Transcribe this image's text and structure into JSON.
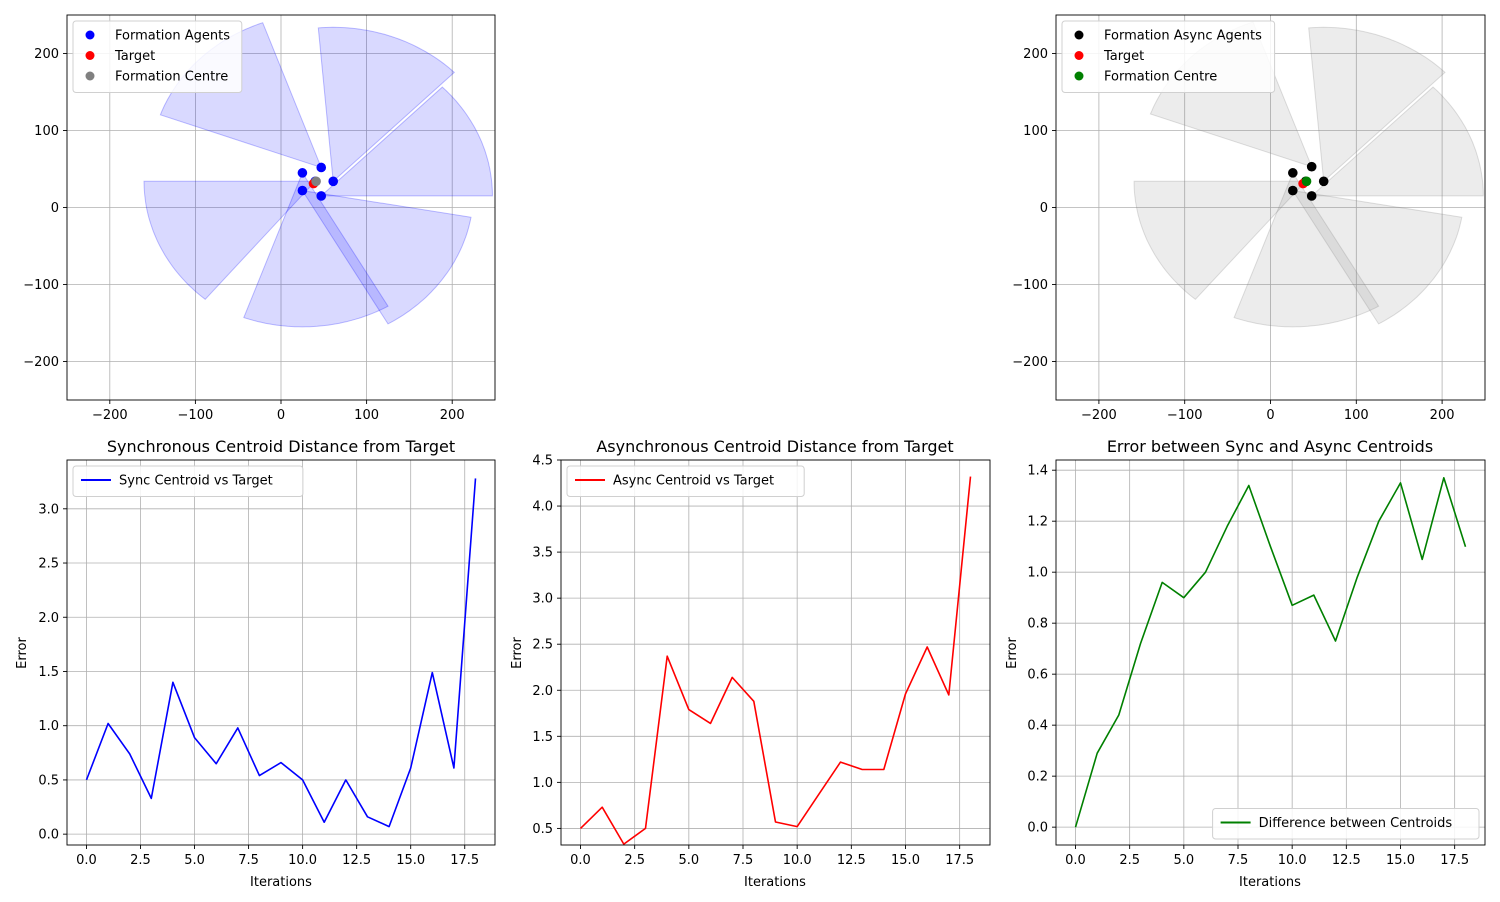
{
  "chart_data": [
    {
      "id": "sync_formation",
      "type": "scatter",
      "xlim": [
        -250,
        250
      ],
      "ylim": [
        -250,
        250
      ],
      "xticks": [
        -200,
        -100,
        0,
        100,
        200
      ],
      "yticks": [
        -200,
        -100,
        0,
        100,
        200
      ],
      "xtick_labels": [
        "−200",
        "−100",
        "0",
        "100",
        "200"
      ],
      "ytick_labels": [
        "−200",
        "−100",
        "0",
        "100",
        "200"
      ],
      "grid": true,
      "legend_position": "top-left",
      "fan_color": "#0000ff",
      "legend": [
        {
          "label": "Formation Agents",
          "color": "#0000ff"
        },
        {
          "label": "Target",
          "color": "#ff0000"
        },
        {
          "label": "Formation Centre",
          "color": "#808080"
        }
      ],
      "agents": [
        [
          47,
          52
        ],
        [
          61,
          34
        ],
        [
          47,
          15
        ],
        [
          25,
          22
        ],
        [
          25,
          45
        ],
        [
          40,
          34
        ]
      ],
      "target": [
        38,
        31
      ],
      "centre": [
        41,
        34
      ],
      "sectors": [
        {
          "cx": 47,
          "cy": 52,
          "r": 200,
          "a1": 110,
          "a2": 160
        },
        {
          "cx": 61,
          "cy": 34,
          "r": 200,
          "a1": 45,
          "a2": 95
        },
        {
          "cx": 47,
          "cy": 15,
          "r": 200,
          "a1": 0,
          "a2": 45
        },
        {
          "cx": 25,
          "cy": 22,
          "r": 200,
          "a1": 300,
          "a2": 350
        },
        {
          "cx": 25,
          "cy": 45,
          "r": 200,
          "a1": 250,
          "a2": 300
        },
        {
          "cx": 40,
          "cy": 34,
          "r": 200,
          "a1": 180,
          "a2": 230
        }
      ]
    },
    {
      "id": "async_formation",
      "type": "scatter",
      "xlim": [
        -250,
        250
      ],
      "ylim": [
        -250,
        250
      ],
      "xticks": [
        -200,
        -100,
        0,
        100,
        200
      ],
      "yticks": [
        -200,
        -100,
        0,
        100,
        200
      ],
      "xtick_labels": [
        "−200",
        "−100",
        "0",
        "100",
        "200"
      ],
      "ytick_labels": [
        "−200",
        "−100",
        "0",
        "100",
        "200"
      ],
      "grid": true,
      "legend_position": "top-left",
      "fan_color": "#808080",
      "legend": [
        {
          "label": "Formation Async Agents",
          "color": "#000000"
        },
        {
          "label": "Target",
          "color": "#ff0000"
        },
        {
          "label": "Formation Centre",
          "color": "#008000"
        }
      ],
      "agents": [
        [
          48,
          53
        ],
        [
          62,
          34
        ],
        [
          48,
          15
        ],
        [
          26,
          22
        ],
        [
          26,
          45
        ],
        [
          41,
          34
        ]
      ],
      "target": [
        38,
        31
      ],
      "centre": [
        42,
        34
      ],
      "sectors": [
        {
          "cx": 48,
          "cy": 53,
          "r": 200,
          "a1": 110,
          "a2": 160
        },
        {
          "cx": 62,
          "cy": 34,
          "r": 200,
          "a1": 45,
          "a2": 95
        },
        {
          "cx": 48,
          "cy": 15,
          "r": 200,
          "a1": 0,
          "a2": 45
        },
        {
          "cx": 26,
          "cy": 22,
          "r": 200,
          "a1": 300,
          "a2": 350
        },
        {
          "cx": 26,
          "cy": 45,
          "r": 200,
          "a1": 250,
          "a2": 300
        },
        {
          "cx": 41,
          "cy": 34,
          "r": 200,
          "a1": 180,
          "a2": 230
        }
      ]
    },
    {
      "id": "sync_error",
      "type": "line",
      "title": "Synchronous Centroid Distance from Target",
      "xlabel": "Iterations",
      "ylabel": "Error",
      "xlim": [
        -0.9,
        18.9
      ],
      "ylim": [
        -0.1,
        3.45
      ],
      "xticks": [
        0,
        2.5,
        5,
        7.5,
        10,
        12.5,
        15,
        17.5
      ],
      "xtick_labels": [
        "0.0",
        "2.5",
        "5.0",
        "7.5",
        "10.0",
        "12.5",
        "15.0",
        "17.5"
      ],
      "yticks": [
        0,
        0.5,
        1,
        1.5,
        2,
        2.5,
        3
      ],
      "ytick_labels": [
        "0.0",
        "0.5",
        "1.0",
        "1.5",
        "2.0",
        "2.5",
        "3.0"
      ],
      "grid": true,
      "legend_position": "top-left",
      "series": [
        {
          "name": "Sync Centroid vs Target",
          "color": "#0000ff",
          "x": [
            0,
            1,
            2,
            3,
            4,
            5,
            6,
            7,
            8,
            9,
            10,
            11,
            12,
            13,
            14,
            15,
            16,
            17,
            18
          ],
          "values": [
            0.5,
            1.02,
            0.74,
            0.33,
            1.4,
            0.89,
            0.65,
            0.98,
            0.54,
            0.66,
            0.5,
            0.11,
            0.5,
            0.16,
            0.07,
            0.61,
            1.49,
            0.61,
            3.28
          ]
        }
      ]
    },
    {
      "id": "async_error",
      "type": "line",
      "title": "Asynchronous Centroid Distance from Target",
      "xlabel": "Iterations",
      "ylabel": "Error",
      "xlim": [
        -0.9,
        18.9
      ],
      "ylim": [
        0.32,
        4.5
      ],
      "xticks": [
        0,
        2.5,
        5,
        7.5,
        10,
        12.5,
        15,
        17.5
      ],
      "xtick_labels": [
        "0.0",
        "2.5",
        "5.0",
        "7.5",
        "10.0",
        "12.5",
        "15.0",
        "17.5"
      ],
      "yticks": [
        0.5,
        1,
        1.5,
        2,
        2.5,
        3,
        3.5,
        4,
        4.5
      ],
      "ytick_labels": [
        "0.5",
        "1.0",
        "1.5",
        "2.0",
        "2.5",
        "3.0",
        "3.5",
        "4.0",
        "4.5"
      ],
      "grid": true,
      "legend_position": "top-left",
      "series": [
        {
          "name": "Async Centroid vs Target",
          "color": "#ff0000",
          "x": [
            0,
            1,
            2,
            3,
            4,
            5,
            6,
            7,
            8,
            9,
            10,
            11,
            12,
            13,
            14,
            15,
            16,
            17,
            18
          ],
          "values": [
            0.5,
            0.73,
            0.33,
            0.5,
            2.37,
            1.79,
            1.64,
            2.14,
            1.88,
            0.57,
            0.52,
            0.87,
            1.22,
            1.14,
            1.14,
            1.96,
            2.47,
            1.95,
            4.32
          ]
        }
      ]
    },
    {
      "id": "diff_error",
      "type": "line",
      "title": "Error between Sync and Async Centroids",
      "xlabel": "Iterations",
      "ylabel": "Error",
      "xlim": [
        -0.9,
        18.9
      ],
      "ylim": [
        -0.07,
        1.44
      ],
      "xticks": [
        0,
        2.5,
        5,
        7.5,
        10,
        12.5,
        15,
        17.5
      ],
      "xtick_labels": [
        "0.0",
        "2.5",
        "5.0",
        "7.5",
        "10.0",
        "12.5",
        "15.0",
        "17.5"
      ],
      "yticks": [
        0,
        0.2,
        0.4,
        0.6,
        0.8,
        1,
        1.2,
        1.4
      ],
      "ytick_labels": [
        "0.0",
        "0.2",
        "0.4",
        "0.6",
        "0.8",
        "1.0",
        "1.2",
        "1.4"
      ],
      "grid": true,
      "legend_position": "bottom-right",
      "series": [
        {
          "name": "Difference between Centroids",
          "color": "#008000",
          "x": [
            0,
            1,
            2,
            3,
            4,
            5,
            6,
            7,
            8,
            9,
            10,
            11,
            12,
            13,
            14,
            15,
            16,
            17,
            18
          ],
          "values": [
            0.0,
            0.29,
            0.44,
            0.72,
            0.96,
            0.9,
            1.0,
            1.18,
            1.34,
            1.1,
            0.87,
            0.91,
            0.73,
            0.98,
            1.2,
            1.35,
            1.05,
            1.37,
            1.1
          ]
        }
      ]
    }
  ]
}
